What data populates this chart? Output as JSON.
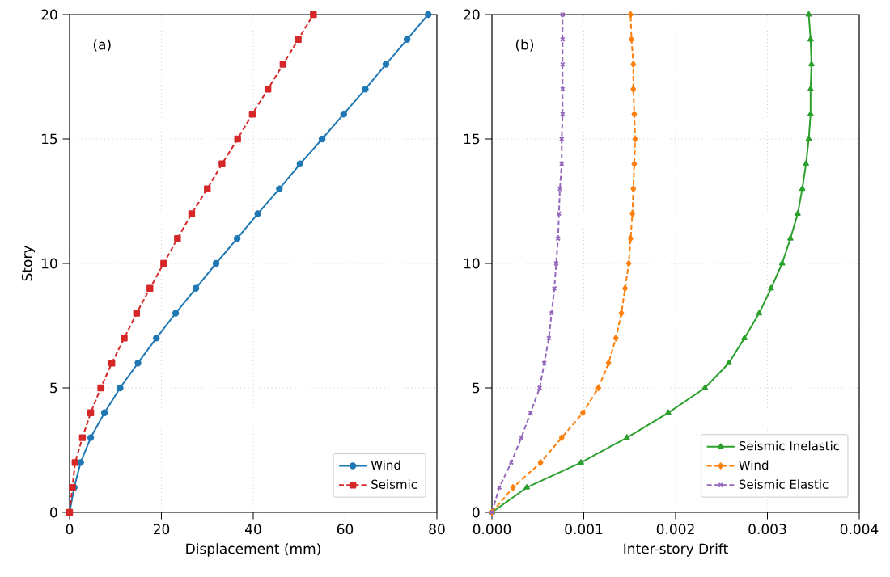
{
  "chart_data": [
    {
      "type": "line",
      "xlabel": "Displacement (mm)",
      "ylabel": "Story",
      "annotations": [
        "(a)"
      ],
      "xlim": [
        0,
        80
      ],
      "xticks": [
        0,
        20,
        40,
        60,
        80
      ],
      "ylim": [
        0,
        20
      ],
      "yticks": [
        0,
        5,
        10,
        15,
        20
      ],
      "grid": true,
      "legend": "bottom right",
      "series": [
        {
          "name": "Wind",
          "color": "#1f77b4",
          "marker": "circle",
          "line_style": "solid",
          "x": [
            0,
            1.0,
            2.4,
            4.6,
            7.6,
            11.0,
            14.9,
            18.9,
            23.1,
            27.5,
            31.9,
            36.5,
            41.0,
            45.7,
            50.2,
            55.0,
            59.7,
            64.4,
            68.9,
            73.5,
            78.1
          ],
          "values": [
            0,
            1,
            2,
            3,
            4,
            5,
            6,
            7,
            8,
            9,
            10,
            11,
            12,
            13,
            14,
            15,
            16,
            17,
            18,
            19,
            20
          ]
        },
        {
          "name": "Seismic",
          "color": "#d62728",
          "marker": "square",
          "line_style": "dashed",
          "x": [
            0,
            0.6,
            1.2,
            2.8,
            4.6,
            6.8,
            9.2,
            11.9,
            14.6,
            17.5,
            20.5,
            23.5,
            26.6,
            30.0,
            33.2,
            36.6,
            39.8,
            43.2,
            46.5,
            49.8,
            53.1
          ],
          "values": [
            0,
            1,
            2,
            3,
            4,
            5,
            6,
            7,
            8,
            9,
            10,
            11,
            12,
            13,
            14,
            15,
            16,
            17,
            18,
            19,
            20
          ]
        }
      ]
    },
    {
      "type": "line",
      "xlabel": "Inter-story Drift",
      "annotations": [
        "(b)"
      ],
      "xlim": [
        0,
        0.004
      ],
      "xticks": [
        {
          "value": 0,
          "label": "0.000"
        },
        {
          "value": 0.001,
          "label": "0.001"
        },
        {
          "value": 0.002,
          "label": "0.002"
        },
        {
          "value": 0.003,
          "label": "0.003"
        },
        {
          "value": 0.004,
          "label": "0.004"
        }
      ],
      "ylim": [
        0,
        20
      ],
      "yticks": [
        0,
        5,
        10,
        15,
        20
      ],
      "grid": true,
      "legend": "bottom right",
      "series": [
        {
          "name": "Seismic Inelastic",
          "color": "#2ca02c",
          "marker": "triangle",
          "line_style": "solid",
          "x": [
            0,
            0.00038,
            0.00097,
            0.00147,
            0.00192,
            0.00232,
            0.00258,
            0.00275,
            0.00291,
            0.00304,
            0.00316,
            0.00325,
            0.00333,
            0.00338,
            0.00342,
            0.00345,
            0.00347,
            0.00347,
            0.00348,
            0.00347,
            0.00345
          ],
          "values": [
            0,
            1,
            2,
            3,
            4,
            5,
            6,
            7,
            8,
            9,
            10,
            11,
            12,
            13,
            14,
            15,
            16,
            17,
            18,
            19,
            20
          ]
        },
        {
          "name": "Wind",
          "color": "#ff7f0e",
          "marker": "diamond",
          "line_style": "dashed",
          "x": [
            0,
            0.00023,
            0.00053,
            0.00076,
            0.00099,
            0.00116,
            0.00127,
            0.00135,
            0.00141,
            0.00145,
            0.00149,
            0.00151,
            0.00153,
            0.00154,
            0.00155,
            0.00156,
            0.00155,
            0.00154,
            0.00154,
            0.00152,
            0.00151
          ],
          "values": [
            0,
            1,
            2,
            3,
            4,
            5,
            6,
            7,
            8,
            9,
            10,
            11,
            12,
            13,
            14,
            15,
            16,
            17,
            18,
            19,
            20
          ]
        },
        {
          "name": "Seismic Elastic",
          "color": "#9467bd",
          "marker": "cross",
          "line_style": "dashed",
          "x": [
            0,
            8e-05,
            0.00021,
            0.00032,
            0.00042,
            0.00052,
            0.00057,
            0.00062,
            0.00065,
            0.00068,
            0.0007,
            0.00072,
            0.00073,
            0.00074,
            0.00076,
            0.00076,
            0.00077,
            0.00077,
            0.00077,
            0.00077,
            0.00077
          ],
          "values": [
            0,
            1,
            2,
            3,
            4,
            5,
            6,
            7,
            8,
            9,
            10,
            11,
            12,
            13,
            14,
            15,
            16,
            17,
            18,
            19,
            20
          ]
        }
      ]
    }
  ]
}
